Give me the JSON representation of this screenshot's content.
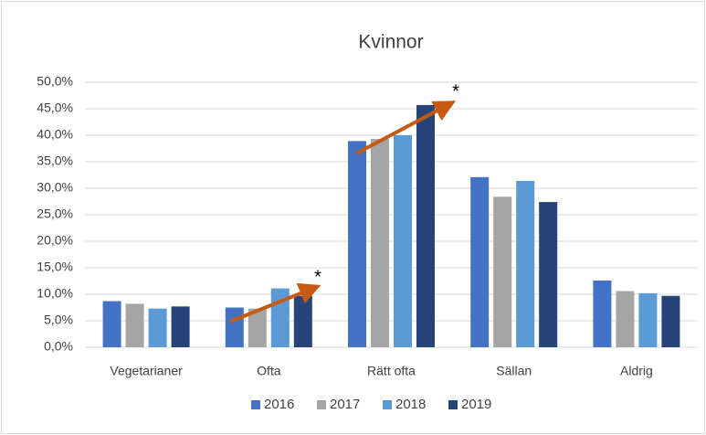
{
  "chart_data": {
    "type": "bar",
    "title": "Kvinnor",
    "categories": [
      "Vegetarianer",
      "Ofta",
      "Rätt ofta",
      "Sällan",
      "Aldrig"
    ],
    "series": [
      {
        "name": "2016",
        "color": "#4472c4",
        "values": [
          8.7,
          7.5,
          38.9,
          32.1,
          12.6
        ]
      },
      {
        "name": "2017",
        "color": "#a5a5a5",
        "values": [
          8.2,
          7.3,
          39.3,
          28.4,
          10.6
        ]
      },
      {
        "name": "2018",
        "color": "#5b9bd5",
        "values": [
          7.3,
          11.1,
          40.0,
          31.4,
          10.2
        ]
      },
      {
        "name": "2019",
        "color": "#264478",
        "values": [
          7.7,
          9.7,
          45.7,
          27.4,
          9.7
        ]
      }
    ],
    "ylim": [
      0,
      50
    ],
    "yticks": [
      {
        "value": 0,
        "label": "0,0%"
      },
      {
        "value": 5,
        "label": "5,0%"
      },
      {
        "value": 10,
        "label": "10,0%"
      },
      {
        "value": 15,
        "label": "15,0%"
      },
      {
        "value": 20,
        "label": "20,0%"
      },
      {
        "value": 25,
        "label": "25,0%"
      },
      {
        "value": 30,
        "label": "30,0%"
      },
      {
        "value": 35,
        "label": "35,0%"
      },
      {
        "value": 40,
        "label": "40,0%"
      },
      {
        "value": 45,
        "label": "45,0%"
      },
      {
        "value": 50,
        "label": "50,0%"
      }
    ],
    "grid": true,
    "legend": "bottom",
    "annotations": [
      "*",
      "*"
    ]
  }
}
